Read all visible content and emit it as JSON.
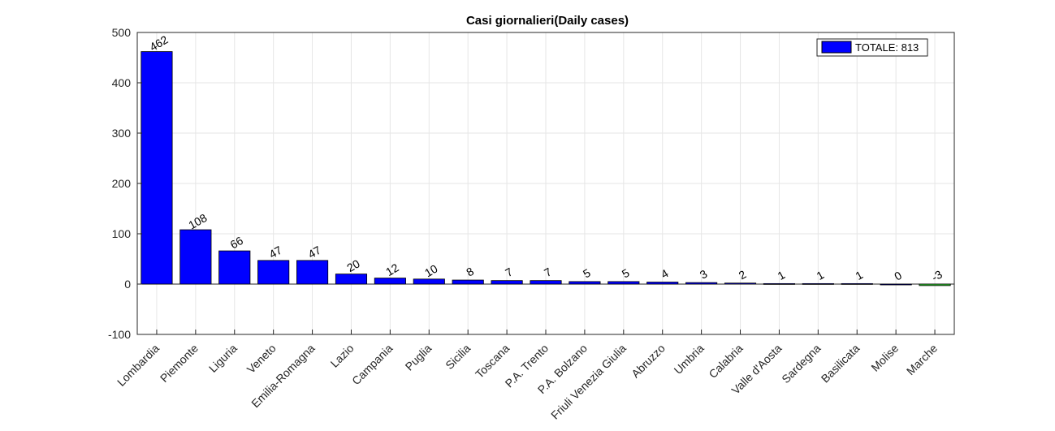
{
  "chart_data": {
    "type": "bar",
    "title": "Casi giornalieri(Daily cases)",
    "xlabel": "",
    "ylabel": "",
    "ylim": [
      -100,
      500
    ],
    "yticks": [
      -100,
      0,
      100,
      200,
      300,
      400,
      500
    ],
    "grid": true,
    "legend": {
      "placement": "top-right",
      "label": "TOTALE: 813"
    },
    "categories": [
      "Lombardia",
      "Piemonte",
      "Liguria",
      "Veneto",
      "Emilia-Romagna",
      "Lazio",
      "Campania",
      "Puglia",
      "Sicilia",
      "Toscana",
      "P.A. Trento",
      "P.A. Bolzano",
      "Friuli Venezia Giulia",
      "Abruzzo",
      "Umbria",
      "Calabria",
      "Valle d'Aosta",
      "Sardegna",
      "Basilicata",
      "Molise",
      "Marche"
    ],
    "values": [
      462,
      108,
      66,
      47,
      47,
      20,
      12,
      10,
      8,
      7,
      7,
      5,
      5,
      4,
      3,
      2,
      1,
      1,
      1,
      0,
      -3
    ],
    "colors": {
      "positive": "#0000ff",
      "negative": "#33cc33",
      "grid": "#e6e6e6",
      "axis": "#262626"
    }
  }
}
